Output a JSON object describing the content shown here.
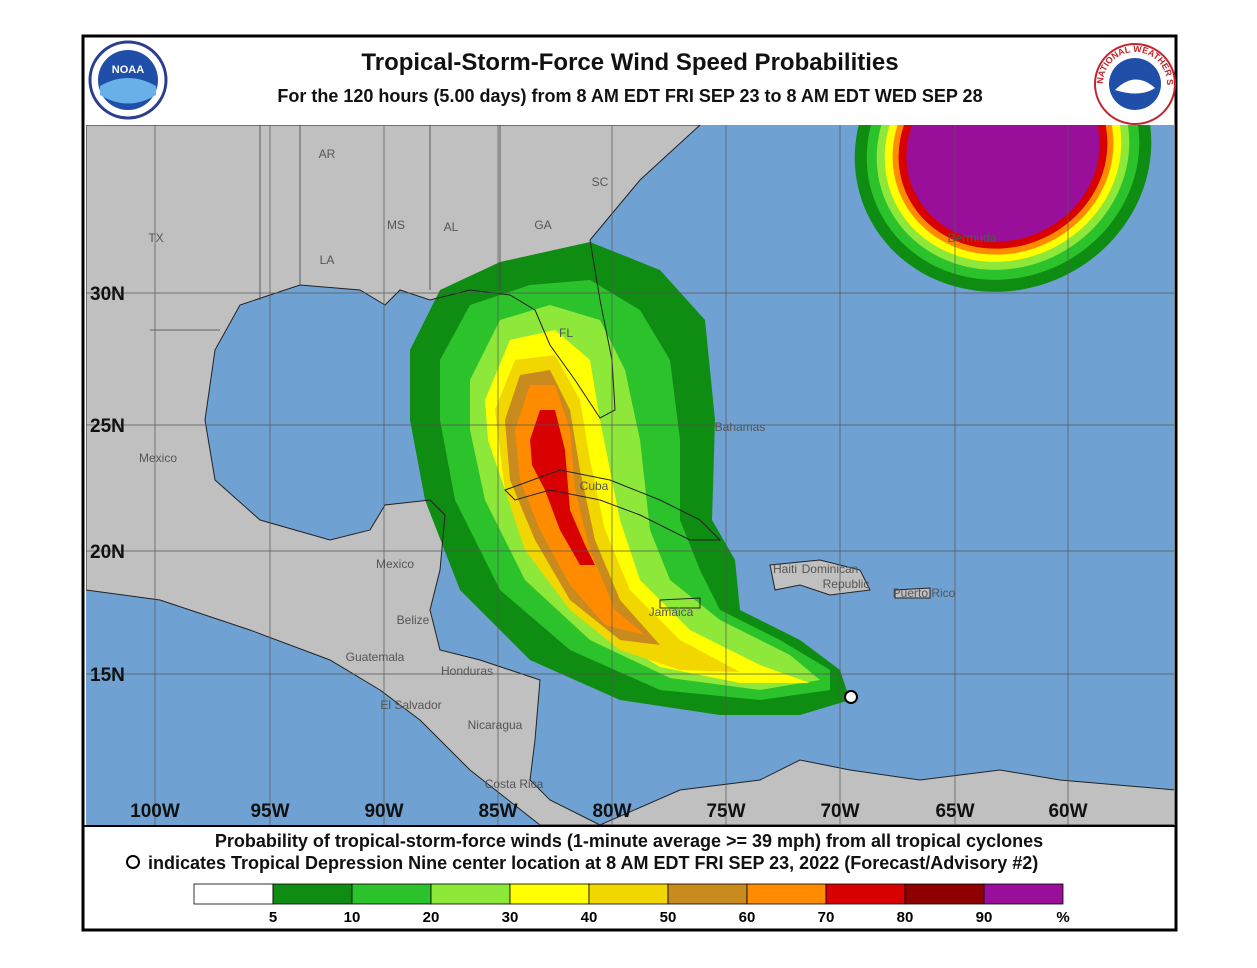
{
  "header": {
    "title": "Tropical-Storm-Force Wind Speed Probabilities",
    "subtitle": "For the 120 hours (5.00 days) from 8 AM EDT FRI SEP 23 to 8 AM EDT WED SEP 28",
    "noaa_logo": "NOAA",
    "nws_logo": "NATIONAL WEATHER SERVICE"
  },
  "map": {
    "labels": [
      "AR",
      "SC",
      "MS",
      "AL",
      "GA",
      "TX",
      "LA",
      "FL",
      "Mexico",
      "Bahamas",
      "Cuba",
      "Mexico",
      "Haiti",
      "Dominican",
      "Republic",
      "Puerto Rico",
      "Jamaica",
      "Belize",
      "Guatemala",
      "Honduras",
      "El Salvador",
      "Nicaragua",
      "Costa Rica",
      "Bermuda"
    ],
    "longitudes": [
      "100W",
      "95W",
      "90W",
      "85W",
      "80W",
      "75W",
      "70W",
      "65W",
      "60W"
    ],
    "latitudes": [
      "30N",
      "25N",
      "20N",
      "15N"
    ]
  },
  "footer": {
    "line1": "Probability of tropical-storm-force winds (1-minute average >= 39 mph) from all tropical cyclones",
    "line2": "indicates Tropical Depression Nine center location at 8 AM EDT FRI SEP 23, 2022 (Forecast/Advisory #2)"
  },
  "legend": {
    "ticks": [
      5,
      10,
      20,
      30,
      40,
      50,
      60,
      70,
      80,
      90
    ],
    "unit": "%",
    "colors": [
      "#ffffff",
      "#0f8c12",
      "#2cc22c",
      "#8ee83a",
      "#ffff00",
      "#f2d600",
      "#c98a1e",
      "#ff8c00",
      "#d80000",
      "#8e0000",
      "#9a0f9a"
    ]
  }
}
